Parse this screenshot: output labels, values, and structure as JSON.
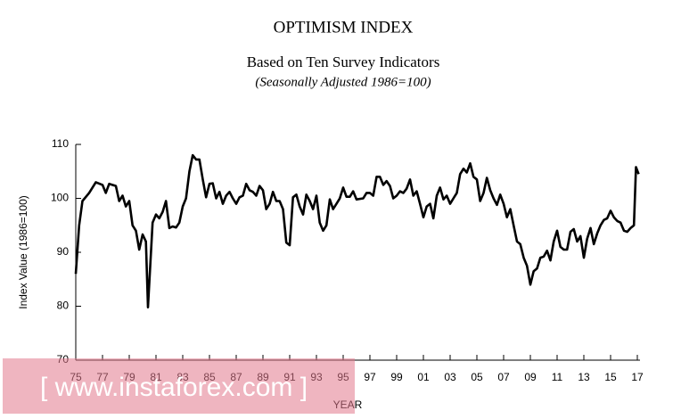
{
  "chart_data": {
    "type": "line",
    "title": "OPTIMISM INDEX",
    "subtitle": "Based on Ten Survey Indicators",
    "note": "(Seasonally Adjusted 1986=100)",
    "y_label": "Index Value (1986=100)",
    "x_label": "YEAR",
    "watermark": "[ www.instaforex.com ]",
    "color": "#000000",
    "xlim": [
      1975,
      2017.2
    ],
    "ylim": [
      70,
      110
    ],
    "yticks": [
      70,
      80,
      90,
      100,
      110
    ],
    "xticks": [
      {
        "value": 1975,
        "label": "75"
      },
      {
        "value": 1977,
        "label": "77"
      },
      {
        "value": 1979,
        "label": "79"
      },
      {
        "value": 1981,
        "label": "81"
      },
      {
        "value": 1983,
        "label": "83"
      },
      {
        "value": 1985,
        "label": "85"
      },
      {
        "value": 1987,
        "label": "87"
      },
      {
        "value": 1989,
        "label": "89"
      },
      {
        "value": 1991,
        "label": "91"
      },
      {
        "value": 1993,
        "label": "93"
      },
      {
        "value": 1995,
        "label": "95"
      },
      {
        "value": 1997,
        "label": "97"
      },
      {
        "value": 1999,
        "label": "99"
      },
      {
        "value": 2001,
        "label": "01"
      },
      {
        "value": 2003,
        "label": "03"
      },
      {
        "value": 2005,
        "label": "05"
      },
      {
        "value": 2007,
        "label": "07"
      },
      {
        "value": 2009,
        "label": "09"
      },
      {
        "value": 2011,
        "label": "11"
      },
      {
        "value": 2013,
        "label": "13"
      },
      {
        "value": 2015,
        "label": "15"
      },
      {
        "value": 2017,
        "label": "17"
      }
    ],
    "x": [
      1975,
      1975.25,
      1975.5,
      1976,
      1976.5,
      1977,
      1977.25,
      1977.5,
      1978,
      1978.25,
      1978.5,
      1978.75,
      1979,
      1979.25,
      1979.5,
      1979.75,
      1980,
      1980.25,
      1980.4,
      1980.75,
      1981,
      1981.25,
      1981.5,
      1981.75,
      1982,
      1982.25,
      1982.5,
      1982.75,
      1983,
      1983.25,
      1983.5,
      1983.75,
      1984,
      1984.25,
      1984.5,
      1984.75,
      1985,
      1985.25,
      1985.5,
      1985.75,
      1986,
      1986.25,
      1986.5,
      1986.75,
      1987,
      1987.25,
      1987.5,
      1987.75,
      1988,
      1988.25,
      1988.5,
      1988.75,
      1989,
      1989.25,
      1989.5,
      1989.75,
      1990,
      1990.25,
      1990.5,
      1990.75,
      1991,
      1991.25,
      1991.5,
      1991.75,
      1992,
      1992.25,
      1992.5,
      1992.75,
      1993,
      1993.25,
      1993.5,
      1993.75,
      1994,
      1994.25,
      1994.5,
      1994.75,
      1995,
      1995.25,
      1995.5,
      1995.75,
      1996,
      1996.5,
      1996.75,
      1997,
      1997.25,
      1997.5,
      1997.75,
      1998,
      1998.25,
      1998.5,
      1998.75,
      1999,
      1999.25,
      1999.5,
      1999.75,
      2000,
      2000.25,
      2000.5,
      2000.75,
      2001,
      2001.25,
      2001.5,
      2001.75,
      2002,
      2002.25,
      2002.5,
      2002.75,
      2003,
      2003.25,
      2003.5,
      2003.75,
      2004,
      2004.25,
      2004.5,
      2004.75,
      2005,
      2005.25,
      2005.5,
      2005.75,
      2006,
      2006.25,
      2006.5,
      2006.75,
      2007,
      2007.25,
      2007.5,
      2007.75,
      2008,
      2008.25,
      2008.5,
      2008.75,
      2009,
      2009.25,
      2009.5,
      2009.75,
      2010,
      2010.25,
      2010.5,
      2010.75,
      2011,
      2011.25,
      2011.5,
      2011.75,
      2012,
      2012.25,
      2012.5,
      2012.75,
      2013,
      2013.25,
      2013.5,
      2013.75,
      2014,
      2014.25,
      2014.5,
      2014.75,
      2015,
      2015.25,
      2015.5,
      2015.75,
      2016,
      2016.25,
      2016.5,
      2016.75,
      2016.9,
      2017.1
    ],
    "values": [
      86,
      95,
      99.5,
      101,
      103,
      102.5,
      101,
      102.7,
      102.3,
      99.5,
      100.5,
      98.5,
      99.5,
      95,
      94,
      90.5,
      93.3,
      92,
      79.8,
      95.5,
      97,
      96.3,
      97.5,
      99.5,
      94.5,
      94.8,
      94.6,
      95.5,
      98.5,
      100,
      105,
      108,
      107.2,
      107.2,
      103.5,
      100.2,
      102.7,
      102.8,
      100,
      101.2,
      99,
      100.5,
      101.2,
      100,
      99,
      100.2,
      100.5,
      102.7,
      101.5,
      101.2,
      100.5,
      102.3,
      101.5,
      98,
      99,
      101.2,
      99.5,
      99.5,
      98,
      91.8,
      91.3,
      100.2,
      100.7,
      98.5,
      97,
      100.7,
      99.5,
      98,
      100.5,
      95.5,
      94,
      95,
      99.8,
      98,
      99,
      100,
      102,
      100.3,
      100.3,
      101.3,
      99.8,
      100,
      101,
      101,
      100.5,
      104,
      104,
      102.5,
      103.2,
      102.3,
      100,
      100.5,
      101.3,
      101,
      101.8,
      103.5,
      100.5,
      101.3,
      99,
      96.5,
      98.5,
      99,
      96.3,
      100.5,
      102,
      99.8,
      100.5,
      99,
      100,
      101,
      104.5,
      105.5,
      104.8,
      106.5,
      104,
      103.5,
      99.5,
      101,
      103.8,
      101.5,
      100,
      98.8,
      100.7,
      99,
      96.5,
      98,
      95,
      92,
      91.5,
      89,
      87.5,
      84,
      86.5,
      87,
      89,
      89.2,
      90.3,
      88.5,
      92,
      94,
      91,
      90.5,
      90.5,
      93.8,
      94.3,
      92,
      93,
      89,
      92.5,
      94.5,
      91.5,
      93.5,
      95,
      96,
      96.3,
      97.7,
      96.5,
      95.8,
      95.5,
      94,
      93.8,
      94.5,
      95,
      105.8,
      104.5
    ]
  }
}
